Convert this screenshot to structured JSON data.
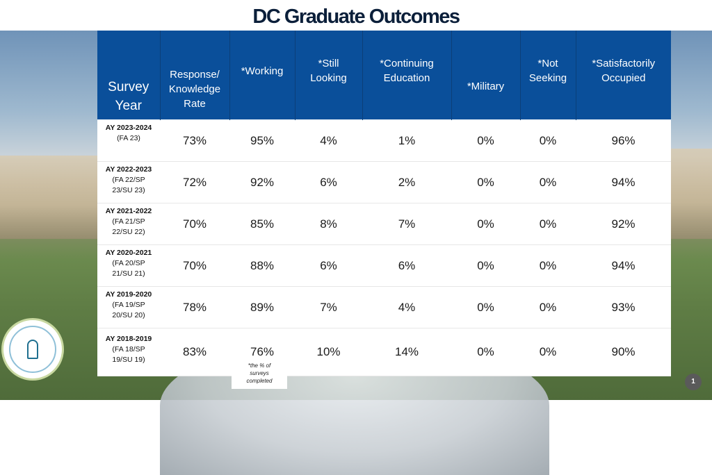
{
  "title": "DC Graduate Outcomes",
  "headers": {
    "year_line1": "Survey",
    "year_line2": "Year",
    "response_line1": "Response/",
    "response_line2": "Knowledge",
    "response_line3": "Rate",
    "working": "*Working",
    "still_line1": "*Still",
    "still_line2": "Looking",
    "continuing_line1": "*Continuing",
    "continuing_line2": "Education",
    "military": "*Military",
    "not_line1": "*Not",
    "not_line2": "Seeking",
    "satisfactorily_line1": "*Satisfactorily",
    "satisfactorily_line2": "Occupied"
  },
  "rows": [
    {
      "year": "AY 2023-2024",
      "terms1": "(FA 23)",
      "terms2": "",
      "response": "73%",
      "working": "95%",
      "still": "4%",
      "continuing": "1%",
      "military": "0%",
      "not_seeking": "0%",
      "satisfactory": "96%"
    },
    {
      "year": "AY 2022-2023",
      "terms1": "(FA 22/SP",
      "terms2": "23/SU 23)",
      "response": "72%",
      "working": "92%",
      "still": "6%",
      "continuing": "2%",
      "military": "0%",
      "not_seeking": "0%",
      "satisfactory": "94%"
    },
    {
      "year": "AY 2021-2022",
      "terms1": "(FA 21/SP",
      "terms2": "22/SU 22)",
      "response": "70%",
      "working": "85%",
      "still": "8%",
      "continuing": "7%",
      "military": "0%",
      "not_seeking": "0%",
      "satisfactory": "92%"
    },
    {
      "year": "AY 2020-2021",
      "terms1": "(FA 20/SP",
      "terms2": "21/SU 21)",
      "response": "70%",
      "working": "88%",
      "still": "6%",
      "continuing": "6%",
      "military": "0%",
      "not_seeking": "0%",
      "satisfactory": "94%"
    },
    {
      "year": "AY 2019-2020",
      "terms1": "(FA 19/SP",
      "terms2": "20/SU 20)",
      "response": "78%",
      "working": "89%",
      "still": "7%",
      "continuing": "4%",
      "military": "0%",
      "not_seeking": "0%",
      "satisfactory": "93%"
    },
    {
      "year": "AY 2018-2019",
      "terms1": "(FA 18/SP",
      "terms2": "19/SU 19)",
      "response": "83%",
      "working": "76%",
      "still": "10%",
      "continuing": "14%",
      "military": "0%",
      "not_seeking": "0%",
      "satisfactory": "90%"
    }
  ],
  "note": {
    "line1": "*the % of",
    "line2": "surveys",
    "line3": "completed"
  },
  "page_number": "1",
  "colors": {
    "header_bg": "#0a4f9a",
    "title": "#0b1f3a"
  }
}
